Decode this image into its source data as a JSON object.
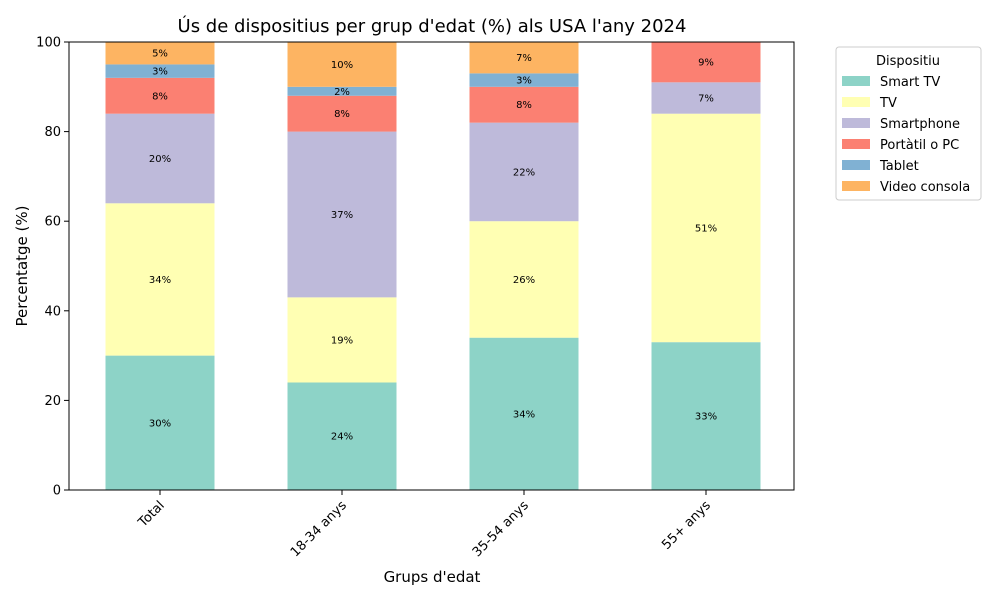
{
  "chart_data": {
    "type": "bar",
    "stacked": true,
    "title": "Ús de dispositius per grup d'edat (%) als USA l'any 2024",
    "xlabel": "Grups d'edat",
    "ylabel": "Percentatge (%)",
    "ylim": [
      0,
      100
    ],
    "yticks": [
      "0",
      "20",
      "40",
      "60",
      "80",
      "100"
    ],
    "categories": [
      "Total",
      "18-34 anys",
      "35-54 anys",
      "55+ anys"
    ],
    "legend": {
      "title": "Dispositiu",
      "placement": "outside-right"
    },
    "series": [
      {
        "name": "Smart TV",
        "color": "#8dd3c7",
        "values": [
          30,
          24,
          34,
          33
        ],
        "labels": [
          "30%",
          "24%",
          "34%",
          "33%"
        ]
      },
      {
        "name": "TV",
        "color": "#ffffb3",
        "values": [
          34,
          19,
          26,
          51
        ],
        "labels": [
          "34%",
          "19%",
          "26%",
          "51%"
        ]
      },
      {
        "name": "Smartphone",
        "color": "#bebada",
        "values": [
          20,
          37,
          22,
          7
        ],
        "labels": [
          "20%",
          "37%",
          "22%",
          "7%"
        ]
      },
      {
        "name": "Portàtil o PC",
        "color": "#fb8072",
        "values": [
          8,
          8,
          8,
          9
        ],
        "labels": [
          "8%",
          "8%",
          "8%",
          "9%"
        ]
      },
      {
        "name": "Tablet",
        "color": "#80b1d3",
        "values": [
          3,
          2,
          3,
          0
        ],
        "labels": [
          "3%",
          "2%",
          "3%",
          ""
        ]
      },
      {
        "name": "Video consola",
        "color": "#fdb462",
        "values": [
          5,
          10,
          7,
          0
        ],
        "labels": [
          "5%",
          "10%",
          "7%",
          ""
        ]
      }
    ]
  }
}
